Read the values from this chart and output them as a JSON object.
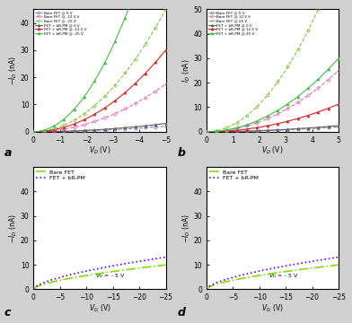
{
  "fig_bg": "#d0d0d0",
  "panel_bg": "#ffffff",
  "panel_a": {
    "xlabel": "V_D (V)",
    "ylabel": "-I_D (nA)",
    "xlim_left": 0,
    "xlim_right": -5,
    "ylim": [
      0,
      45
    ],
    "yticks": [
      0,
      10,
      20,
      30,
      40
    ],
    "xticks": [
      0,
      -1,
      -2,
      -3,
      -4,
      -5
    ],
    "label": "a",
    "bare_colors": [
      "#8080c0",
      "#e070c0",
      "#80c840"
    ],
    "bRPM_colors": [
      "#606060",
      "#e02020",
      "#40c040"
    ],
    "bare_labels": [
      "Bare FET @ 0 V",
      "Bare FET @ -12.5 V",
      "Bare FET @ -25 V"
    ],
    "bRPM_labels": [
      "FET + bR-PM @ 0 V",
      "FET + bR-PM @ -12.5 V",
      "FET + bR-PM @ -25 V"
    ],
    "bare_scales": [
      0.08,
      0.7,
      1.8
    ],
    "bRPM_scales": [
      0.12,
      1.2,
      3.5
    ],
    "power": 2.0
  },
  "panel_b": {
    "xlabel": "V_D (V)",
    "ylabel": "I_D (nA)",
    "xlim_left": 0,
    "xlim_right": 5,
    "ylim": [
      0,
      50
    ],
    "yticks": [
      0,
      10,
      20,
      30,
      40,
      50
    ],
    "xticks": [
      0,
      1,
      2,
      3,
      4,
      5
    ],
    "label": "b",
    "bare_colors": [
      "#8080c0",
      "#e070c0",
      "#80c840"
    ],
    "bRPM_colors": [
      "#606060",
      "#e02020",
      "#40c040"
    ],
    "bare_labels": [
      "Bare FET @ 0 V",
      "Bare FET @ 12.5 V",
      "Bare FET @ 25 V"
    ],
    "bRPM_labels": [
      "FET + bR-PM @ 0 V",
      "FET + bR-PM @ 12.5 V",
      "FET + bR-PM @ 25 V"
    ],
    "bare_scales": [
      0.08,
      1.0,
      2.8
    ],
    "bRPM_scales": [
      0.1,
      0.45,
      1.2
    ],
    "power": 2.0
  },
  "panel_c": {
    "xlabel": "V_G (V)",
    "ylabel": "-I_D (nA)",
    "xlim_left": 0,
    "xlim_right": -25,
    "ylim": [
      0,
      50
    ],
    "yticks": [
      0,
      10,
      20,
      30,
      40
    ],
    "xticks": [
      0,
      -5,
      -10,
      -15,
      -20,
      -25
    ],
    "label": "c",
    "annotation": "V_D = - 5 V",
    "bare_color": "#80e000",
    "bRPM_color": "#7000e0",
    "bare_label": "Bare FET",
    "bRPM_label": "FET + bR-PM",
    "bare_scale": 1.35,
    "bRPM_scale": 1.78,
    "power": 0.62
  },
  "panel_d": {
    "xlabel": "V_G (V)",
    "ylabel": "-I_D (nA)",
    "xlim_left": 0,
    "xlim_right": -25,
    "ylim": [
      0,
      50
    ],
    "yticks": [
      0,
      10,
      20,
      30,
      40
    ],
    "xticks": [
      0,
      -5,
      -10,
      -15,
      -20,
      -25
    ],
    "label": "d",
    "annotation": "V_D = - 5 V",
    "bare_color": "#80e000",
    "bRPM_color": "#7000e0",
    "bare_label": "Bare FET",
    "bRPM_label": "FET + bR-PM",
    "bare_scale": 1.35,
    "bRPM_scale": 1.78,
    "power": 0.62
  }
}
